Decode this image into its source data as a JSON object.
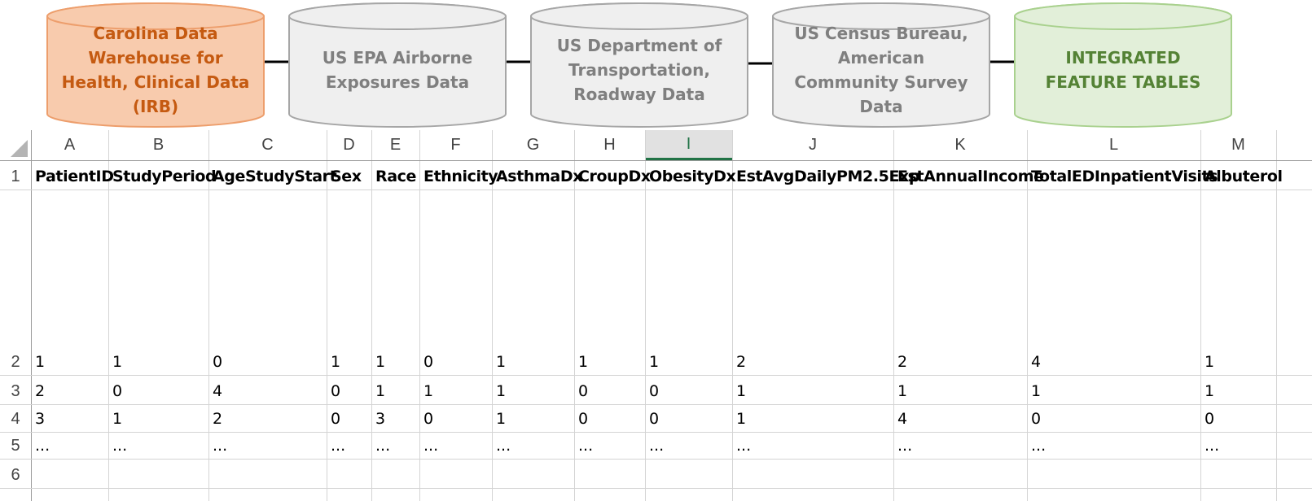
{
  "diagram": {
    "sources": [
      {
        "label": "Carolina Data Warehouse for Health, Clinical Data (IRB)",
        "fill": "#f8cbad",
        "stroke": "#ed9e6c",
        "text_color": "#c55a11"
      },
      {
        "label": "US EPA Airborne Exposures Data",
        "fill": "#efefef",
        "stroke": "#a6a6a6",
        "text_color": "#7f7f7f"
      },
      {
        "label": "US Department of Transportation, Roadway Data",
        "fill": "#efefef",
        "stroke": "#a6a6a6",
        "text_color": "#7f7f7f"
      },
      {
        "label": "US Census Bureau, American Community Survey Data",
        "fill": "#efefef",
        "stroke": "#a6a6a6",
        "text_color": "#7f7f7f"
      },
      {
        "label": "INTEGRATED FEATURE TABLES",
        "fill": "#e2efd9",
        "stroke": "#a9d18e",
        "text_color": "#548235"
      }
    ],
    "connector_color": "#000000"
  },
  "sheet": {
    "selected_column": "I",
    "columns": [
      "A",
      "B",
      "C",
      "D",
      "E",
      "F",
      "G",
      "H",
      "I",
      "J",
      "K",
      "L",
      "M"
    ],
    "row_numbers": [
      "1",
      "2",
      "3",
      "4",
      "5",
      "6"
    ],
    "header_row": [
      "PatientID",
      "StudyPeriod",
      "AgeStudyStart",
      "Sex",
      "Race",
      "Ethnicity",
      "AsthmaDx",
      "CroupDx",
      "ObesityDx",
      "EstAvgDailyPM2.5Exp",
      "EstAnnualIncome",
      "TotalEDInpatientVisits",
      "Albuterol"
    ],
    "rows": [
      [
        "1",
        "1",
        "0",
        "1",
        "1",
        "0",
        "1",
        "1",
        "1",
        "2",
        "2",
        "4",
        "1"
      ],
      [
        "2",
        "0",
        "4",
        "0",
        "1",
        "1",
        "1",
        "0",
        "0",
        "1",
        "1",
        "1",
        "1"
      ],
      [
        "3",
        "1",
        "2",
        "0",
        "3",
        "0",
        "1",
        "0",
        "0",
        "1",
        "4",
        "0",
        "0"
      ],
      [
        "...",
        "...",
        "...",
        "...",
        "...",
        "...",
        "...",
        "...",
        "...",
        "...",
        "...",
        "...",
        "..."
      ]
    ]
  }
}
